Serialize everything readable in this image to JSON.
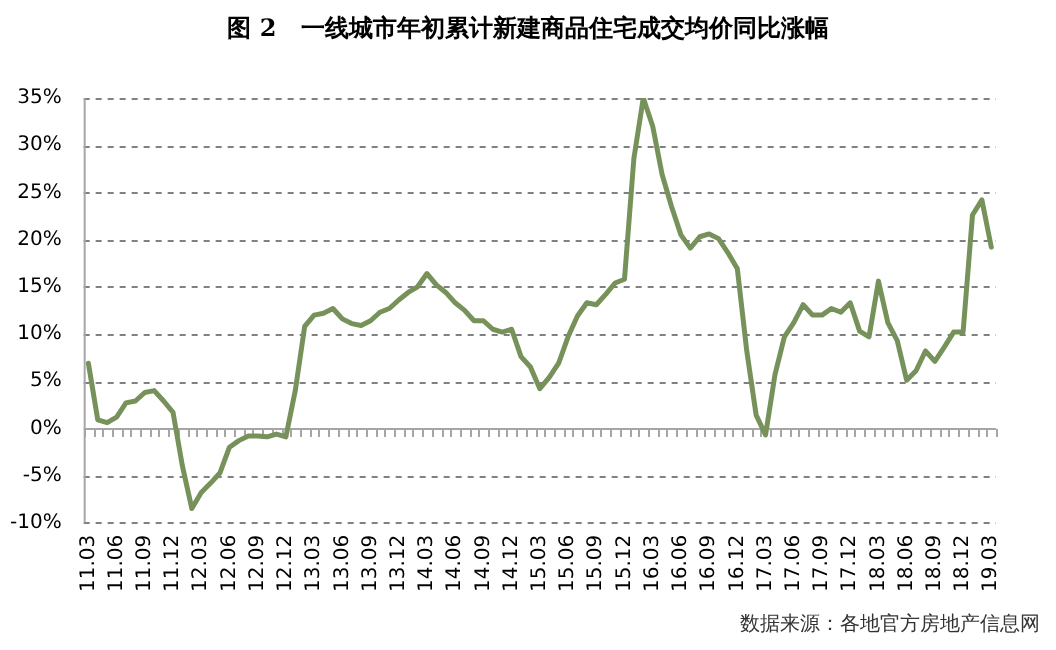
{
  "chart_data": {
    "type": "line",
    "title": "图 2　一线城市年初累计新建商品住宅成交均价同比涨幅",
    "categories": [
      "11.03",
      null,
      null,
      "11.06",
      null,
      null,
      "11.09",
      null,
      null,
      "11.12",
      null,
      null,
      "12.03",
      null,
      null,
      "12.06",
      null,
      null,
      "12.09",
      null,
      null,
      "12.12",
      null,
      null,
      "13.03",
      null,
      null,
      "13.06",
      null,
      null,
      "13.09",
      null,
      null,
      "13.12",
      null,
      null,
      "14.03",
      null,
      null,
      "14.06",
      null,
      null,
      "14.09",
      null,
      null,
      "14.12",
      null,
      null,
      "15.03",
      null,
      null,
      "15.06",
      null,
      null,
      "15.09",
      null,
      null,
      "15.12",
      null,
      null,
      "16.03",
      null,
      null,
      "16.06",
      null,
      null,
      "16.09",
      null,
      null,
      "16.12",
      null,
      null,
      "17.03",
      null,
      null,
      "17.06",
      null,
      null,
      "17.09",
      null,
      null,
      "17.12",
      null,
      null,
      "18.03",
      null,
      null,
      "18.06",
      null,
      null,
      "18.09",
      null,
      null,
      "18.12",
      null,
      null,
      "19.03"
    ],
    "series": [
      {
        "color": "#76925a",
        "values": [
          6.9,
          0.9,
          0.6,
          1.2,
          2.7,
          2.9,
          3.8,
          4.0,
          2.9,
          1.7,
          -4,
          -8.5,
          -6.8,
          -5.8,
          -4.7,
          -2.0,
          -1.3,
          -0.8,
          -0.8,
          -0.9,
          -0.6,
          -0.9,
          4.0,
          10.8,
          12.0,
          12.2,
          12.7,
          11.6,
          11.1,
          10.9,
          11.4,
          12.3,
          12.7,
          13.6,
          14.4,
          15.0,
          16.4,
          15.2,
          14.4,
          13.3,
          12.5,
          11.4,
          11.4,
          10.5,
          10.2,
          10.5,
          7.6,
          6.5,
          4.2,
          5.4,
          6.9,
          9.7,
          11.9,
          13.3,
          13.1,
          14.2,
          15.4,
          15.8,
          28.6,
          35.0,
          32.0,
          26.9,
          23.5,
          20.5,
          19.1,
          20.3,
          20.6,
          20.1,
          18.6,
          16.9,
          8.2,
          1.4,
          -0.7,
          5.7,
          9.7,
          11.2,
          13.1,
          12.0,
          12.0,
          12.7,
          12.3,
          13.3,
          10.3,
          9.7,
          15.6,
          11.2,
          9.3,
          5.1,
          6.1,
          8.2,
          7.1,
          8.6,
          10.2,
          10.2,
          22.6,
          24.2,
          19.2
        ]
      }
    ],
    "ylim": [
      -10,
      35
    ],
    "yticks": [
      {
        "value": -10,
        "label": "-10%"
      },
      {
        "value": -5,
        "label": "-5%"
      },
      {
        "value": 0,
        "label": "0%"
      },
      {
        "value": 5,
        "label": "5%"
      },
      {
        "value": 10,
        "label": "10%"
      },
      {
        "value": 15,
        "label": "15%"
      },
      {
        "value": 20,
        "label": "20%"
      },
      {
        "value": 25,
        "label": "25%"
      },
      {
        "value": 30,
        "label": "30%"
      },
      {
        "value": 35,
        "label": "35%"
      }
    ],
    "grid": "y",
    "legend": false,
    "marker": "none",
    "line_style": "solid",
    "annotations": [
      "数据来源：各地官方房地产信息网"
    ]
  }
}
